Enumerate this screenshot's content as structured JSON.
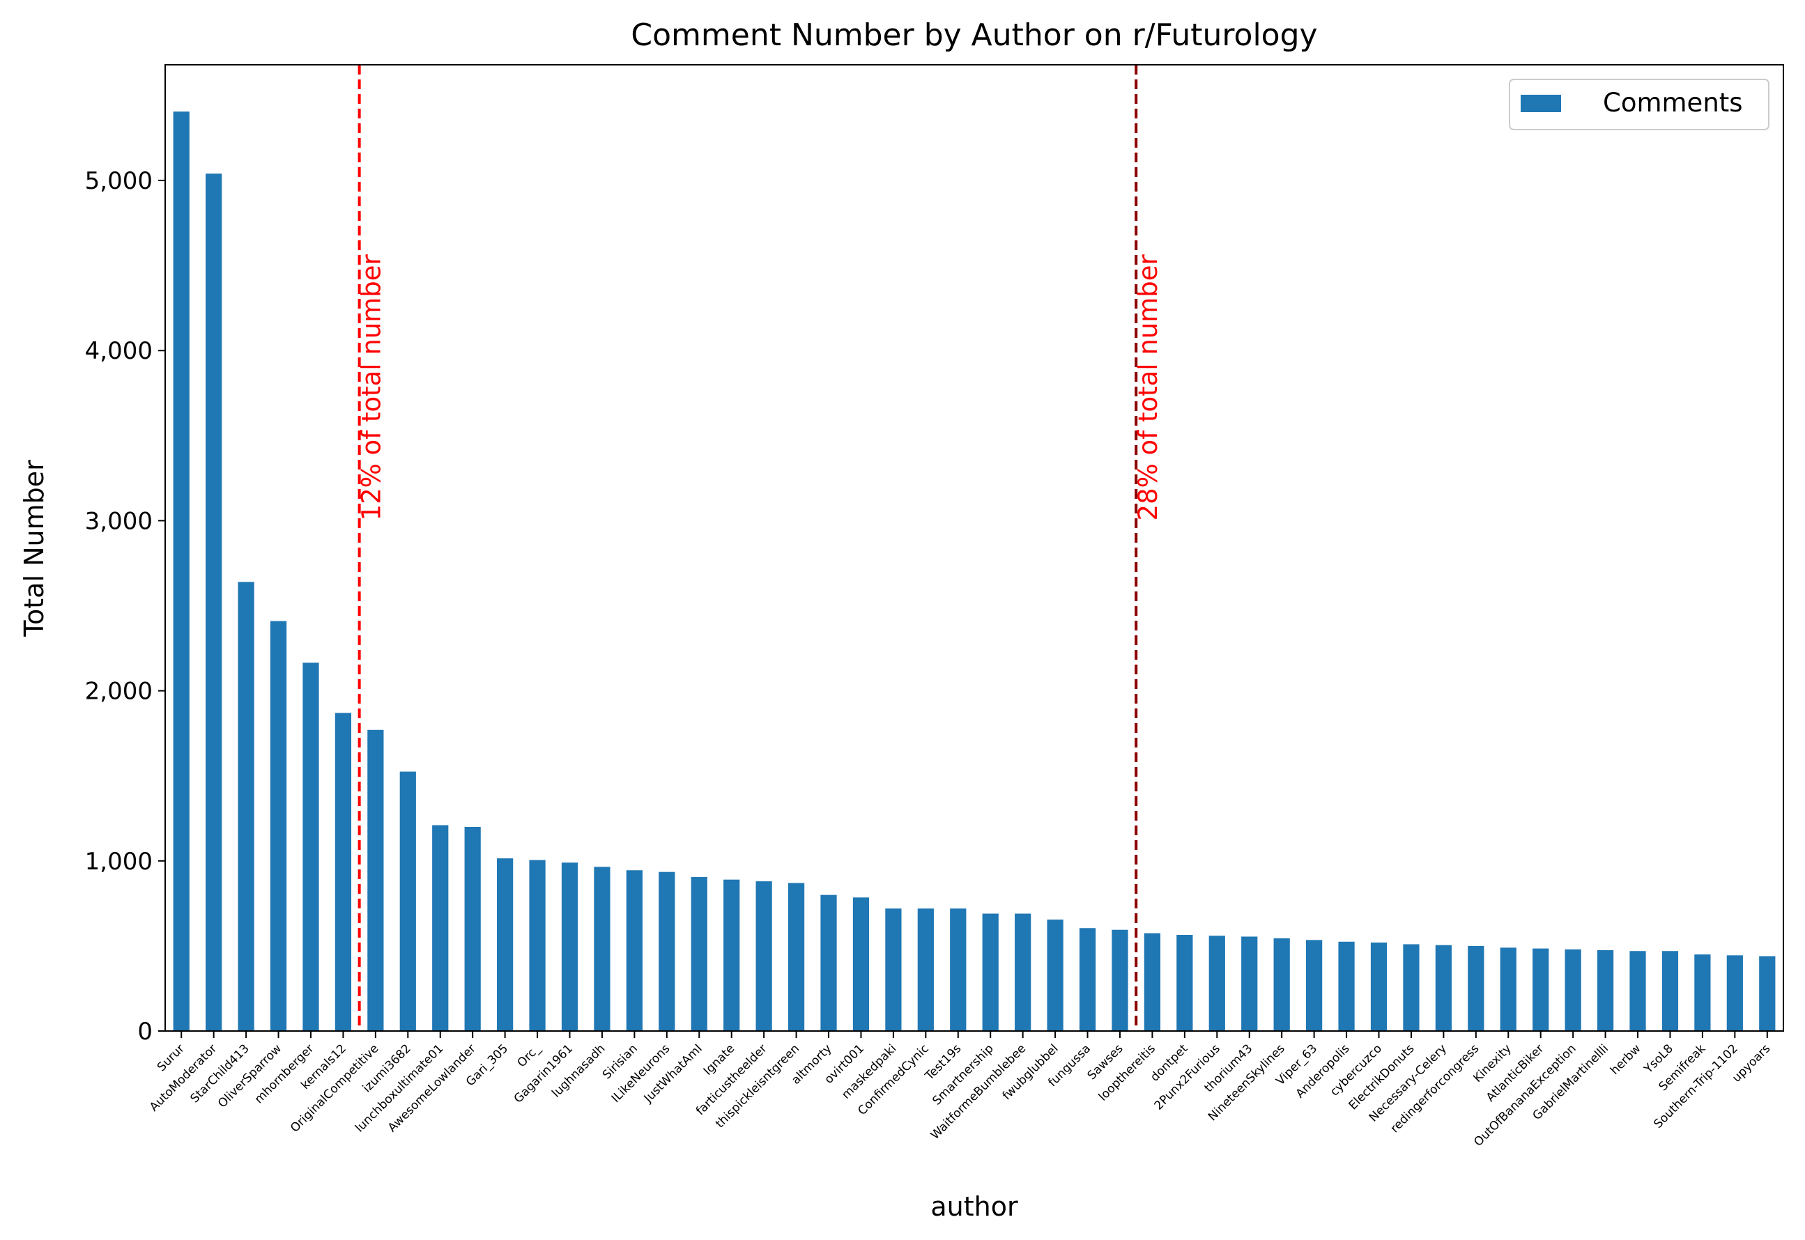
{
  "chart_data": {
    "type": "bar",
    "title": "Comment Number by Author on r/Futurology",
    "xlabel": "author",
    "ylabel": "Total Number",
    "ylim": [
      0,
      5680
    ],
    "yticks": [
      0,
      1000,
      2000,
      3000,
      4000,
      5000
    ],
    "ytick_labels": [
      "0",
      "1,000",
      "2,000",
      "3,000",
      "4,000",
      "5,000"
    ],
    "grid": false,
    "legend_position": "top-right",
    "categories": [
      "Surur",
      "AutoModerator",
      "StarChild413",
      "OliverSparrow",
      "mhornberger",
      "kernals12",
      "OriginalCompetitive",
      "izumi3682",
      "lunchboxultimate01",
      "AwesomeLowlander",
      "Gari_305",
      "Orc_",
      "Gagarin1961",
      "lughnasadh",
      "Sirisian",
      "ILikeNeurons",
      "JustWhatAmI",
      "Ignate",
      "farticustheelder",
      "thispickleisntgreen",
      "altmorty",
      "ovirt001",
      "maskedpaki",
      "ConfirmedCynic",
      "Test19s",
      "Smartnership",
      "WaitformeBumblebee",
      "fwubglubbel",
      "fungussa",
      "Sawses",
      "loopthereitis",
      "dontpet",
      "2Punx2Furious",
      "thorium43",
      "NineteenSkylines",
      "Viper_63",
      "Anderopolis",
      "cybercuzco",
      "ElectrikDonuts",
      "Necessary-Celery",
      "redingerforcongress",
      "Kinexity",
      "AtlanticBiker",
      "OutOfBananaException",
      "GabrielMartinellli",
      "herbw",
      "YsoL8",
      "Semifreak",
      "Southern-Trip-1102",
      "upyoars"
    ],
    "series": [
      {
        "name": "Comments",
        "color": "#1f77b4",
        "values": [
          5405,
          5040,
          2640,
          2410,
          2165,
          1870,
          1770,
          1525,
          1210,
          1200,
          1015,
          1005,
          990,
          965,
          945,
          935,
          905,
          890,
          880,
          870,
          800,
          785,
          720,
          720,
          720,
          690,
          690,
          655,
          605,
          595,
          575,
          565,
          560,
          555,
          545,
          535,
          525,
          520,
          510,
          505,
          500,
          490,
          485,
          480,
          475,
          470,
          470,
          450,
          445,
          440
        ]
      }
    ],
    "annotations": [
      {
        "text": "12% of total number",
        "after_category": "kernals12",
        "color": "#ff0000"
      },
      {
        "text": "28% of total number",
        "after_category": "Sawses",
        "color": "#8b0000",
        "text_color": "#ff0000"
      }
    ]
  }
}
